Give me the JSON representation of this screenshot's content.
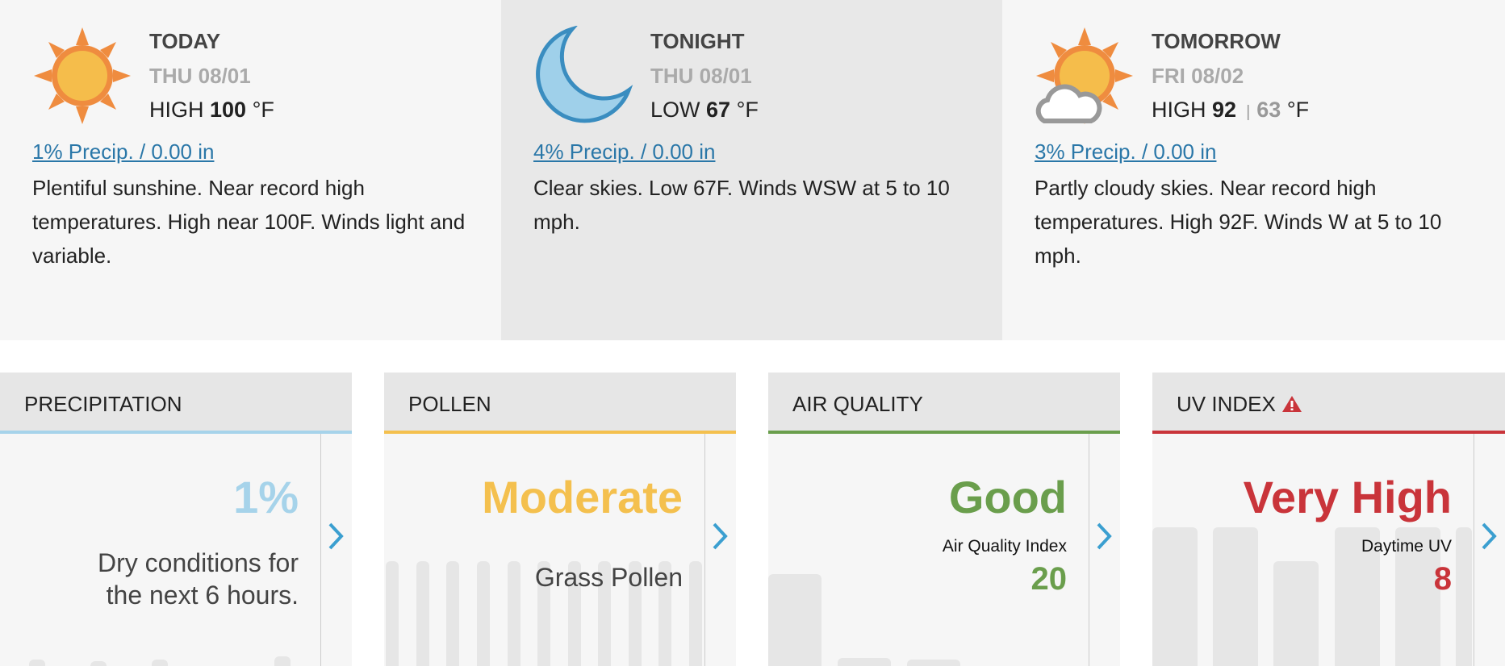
{
  "forecast": [
    {
      "label": "TODAY",
      "date": "THU 08/01",
      "temp_prefix": "HIGH",
      "temp": 100,
      "unit": "°F",
      "precip": "1% Precip. / 0.00 in",
      "summary": "Plentiful sunshine. Near record high temperatures. High near 100F. Winds light and variable."
    },
    {
      "label": "TONIGHT",
      "date": "THU 08/01",
      "temp_prefix": "LOW",
      "temp": 67,
      "unit": "°F",
      "precip": "4% Precip. / 0.00 in",
      "summary": "Clear skies. Low 67F. Winds WSW at 5 to 10 mph."
    },
    {
      "label": "TOMORROW",
      "date": "FRI 08/02",
      "temp_prefix": "HIGH",
      "temp": 92,
      "low": 63,
      "unit": "°F",
      "precip": "3% Precip. / 0.00 in",
      "summary": "Partly cloudy skies. Near record high temperatures. High 92F. Winds W at 5 to 10 mph."
    }
  ],
  "cards": [
    {
      "title": "PRECIPITATION",
      "value": "1%",
      "lines": [
        "Dry conditions for",
        "the next 6 hours."
      ]
    },
    {
      "title": "POLLEN",
      "value": "Moderate",
      "lines": [
        "Grass Pollen"
      ]
    },
    {
      "title": "AIR QUALITY",
      "value": "Good",
      "label": "Air Quality Index",
      "number": 20
    },
    {
      "title": "UV INDEX",
      "value": "Very High",
      "label": "Daytime UV",
      "number": 8
    }
  ]
}
